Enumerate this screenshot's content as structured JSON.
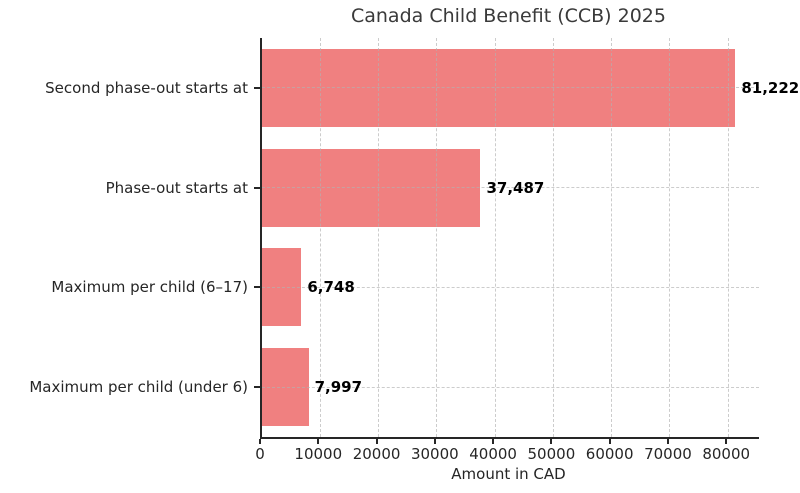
{
  "chart_data": {
    "type": "bar",
    "orientation": "horizontal",
    "title": "Canada Child Benefit (CCB) 2025",
    "xlabel": "Amount in CAD",
    "ylabel": "",
    "categories": [
      "Second phase-out starts at",
      "Phase-out starts at",
      "Maximum per child (6–17)",
      "Maximum per child (under 6)"
    ],
    "values": [
      81222,
      37487,
      6748,
      7997
    ],
    "value_labels": [
      "81,222",
      "37,487",
      "6,748",
      "7,997"
    ],
    "xlim": [
      0,
      85283
    ],
    "xticks": [
      0,
      10000,
      20000,
      30000,
      40000,
      50000,
      60000,
      70000,
      80000
    ],
    "xtick_labels": [
      "0",
      "10000",
      "20000",
      "30000",
      "40000",
      "50000",
      "60000",
      "70000",
      "80000"
    ],
    "grid": true,
    "grid_style": "dashed",
    "legend_position": "none",
    "colors": {
      "bar": "#f08080",
      "spine": "#262626",
      "grid": "#b0b0b0",
      "title_text": "#3a3a3a",
      "tick_text": "#262626",
      "value_text": "#000000",
      "background": "#ffffff"
    }
  }
}
